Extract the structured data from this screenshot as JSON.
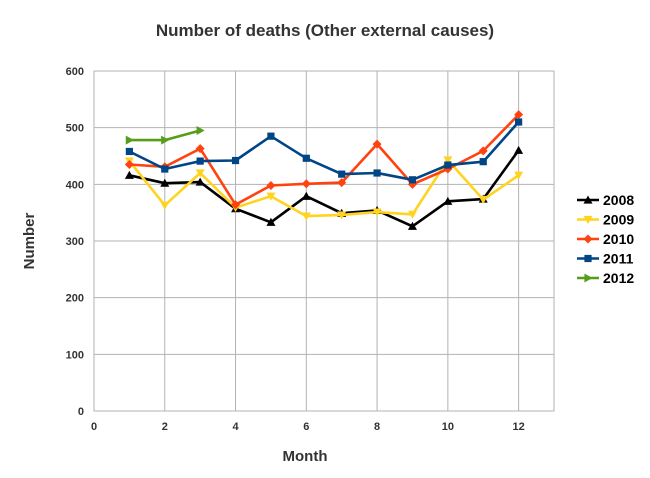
{
  "chart_data": {
    "type": "line",
    "title": "Number of deaths (Other external causes)",
    "xlabel": "Month",
    "ylabel": "Number",
    "xlim": [
      0,
      13
    ],
    "ylim": [
      0,
      600
    ],
    "xticks": [
      0,
      2,
      4,
      6,
      8,
      10,
      12
    ],
    "yticks": [
      0,
      100,
      200,
      300,
      400,
      500,
      600
    ],
    "grid": true,
    "legend_position": "right",
    "series": [
      {
        "name": "2008",
        "color": "#000000",
        "marker": "triangle-up",
        "x": [
          1,
          2,
          3,
          4,
          5,
          6,
          7,
          8,
          9,
          10,
          11,
          12
        ],
        "values": [
          416,
          402,
          404,
          357,
          333,
          379,
          349,
          354,
          326,
          370,
          374,
          460
        ]
      },
      {
        "name": "2009",
        "color": "#ffd320",
        "marker": "triangle-down",
        "x": [
          1,
          2,
          3,
          4,
          5,
          6,
          7,
          8,
          9,
          10,
          11,
          12
        ],
        "values": [
          441,
          363,
          420,
          359,
          379,
          344,
          346,
          351,
          347,
          443,
          373,
          416
        ]
      },
      {
        "name": "2010",
        "color": "#ff420e",
        "marker": "diamond",
        "x": [
          1,
          2,
          3,
          4,
          5,
          6,
          7,
          8,
          9,
          10,
          11,
          12
        ],
        "values": [
          435,
          431,
          463,
          364,
          398,
          401,
          403,
          471,
          400,
          427,
          459,
          523
        ]
      },
      {
        "name": "2011",
        "color": "#004586",
        "marker": "square",
        "x": [
          1,
          2,
          3,
          4,
          5,
          6,
          7,
          8,
          9,
          10,
          11,
          12
        ],
        "values": [
          458,
          427,
          441,
          442,
          485,
          446,
          418,
          420,
          408,
          434,
          440,
          510
        ]
      },
      {
        "name": "2012",
        "color": "#579d1c",
        "marker": "arrow-right",
        "x": [
          1,
          2,
          3
        ],
        "values": [
          478,
          478,
          495
        ]
      }
    ]
  }
}
